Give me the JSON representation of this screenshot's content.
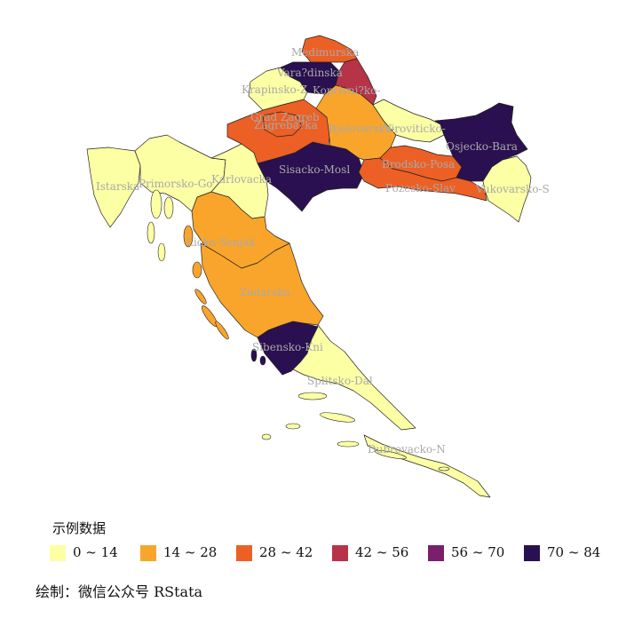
{
  "legend": {
    "title": "示例数据",
    "classes": [
      {
        "label": "0 ~ 14",
        "color": "#FCFFA4"
      },
      {
        "label": "14 ~ 28",
        "color": "#F9A52B"
      },
      {
        "label": "28 ~ 42",
        "color": "#EC6025"
      },
      {
        "label": "42 ~ 56",
        "color": "#B73347"
      },
      {
        "label": "56 ~ 70",
        "color": "#7A1F6C"
      },
      {
        "label": "70 ~ 84",
        "color": "#2A1050"
      }
    ]
  },
  "caption": "绘制：微信公众号 RStata",
  "regions": [
    {
      "label": "Medimurska",
      "class": 2
    },
    {
      "label": "Vara?dinska",
      "class": 5
    },
    {
      "label": "Krapinsko-Z",
      "class": 0
    },
    {
      "label": "Koprivni?ko-",
      "class": 3
    },
    {
      "label": "Grad Zagreb",
      "class": 2
    },
    {
      "label": "Zagreba?ka",
      "class": 2
    },
    {
      "label": "Bjelovarsko-",
      "class": 1
    },
    {
      "label": "Viroviticko-",
      "class": 0
    },
    {
      "label": "Osjecko-Bara",
      "class": 5
    },
    {
      "label": "Sisacko-Mosl",
      "class": 5
    },
    {
      "label": "Brodsko-Posa",
      "class": 2
    },
    {
      "label": "Pozesko-Slav",
      "class": 2
    },
    {
      "label": "Vukovarsko-S",
      "class": 0
    },
    {
      "label": "Istarska",
      "class": 0
    },
    {
      "label": "Primorsko-Go",
      "class": 0
    },
    {
      "label": "Karlovacka",
      "class": 0
    },
    {
      "label": "Licko-Senjsk",
      "class": 1
    },
    {
      "label": "Zadarska",
      "class": 1
    },
    {
      "label": "Sibensko-Kni",
      "class": 5
    },
    {
      "label": "Splitsko-Dal",
      "class": 0
    },
    {
      "label": "Dubrovacko-N",
      "class": 0
    }
  ]
}
